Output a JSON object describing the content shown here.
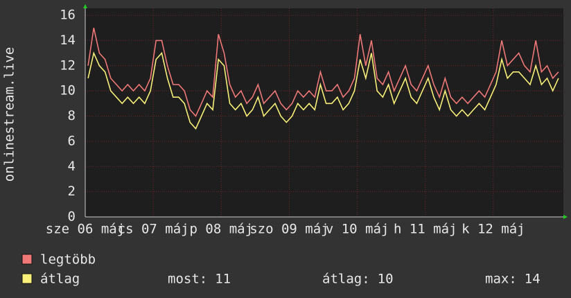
{
  "chart_data": {
    "type": "line",
    "ylabel": "onlinestream.live",
    "xlim": [
      0,
      84
    ],
    "xticks": [
      {
        "value": 0,
        "label": "sze 06 máj"
      },
      {
        "value": 12,
        "label": "cs 07 máj"
      },
      {
        "value": 24,
        "label": "p 08 máj"
      },
      {
        "value": 36,
        "label": "szo 09 máj"
      },
      {
        "value": 48,
        "label": "v 10 máj"
      },
      {
        "value": 60,
        "label": "h 11 máj"
      },
      {
        "value": 72,
        "label": "k 12 máj"
      }
    ],
    "ylim": [
      0,
      16
    ],
    "yticks": [
      0,
      2,
      4,
      6,
      8,
      10,
      12,
      14,
      16
    ],
    "grid": true,
    "series": [
      {
        "name": "legtöbb",
        "color": "#f07878",
        "values": [
          12,
          15,
          13,
          12.5,
          11,
          10.5,
          10,
          10.5,
          10,
          10.5,
          10,
          11,
          14,
          14,
          12,
          10.5,
          10.5,
          10,
          8.5,
          8,
          9,
          10,
          9.5,
          14.5,
          13,
          10.5,
          9.5,
          10,
          9,
          9.5,
          10.5,
          9,
          9.5,
          10,
          9,
          8.5,
          9,
          10,
          9.5,
          10,
          9.5,
          11.5,
          10,
          10,
          10.5,
          9.5,
          10,
          11,
          14.5,
          12,
          14,
          11,
          10.5,
          11.5,
          10,
          11,
          12,
          10.5,
          10,
          11,
          12,
          10.5,
          9.5,
          11,
          9.5,
          9,
          9.5,
          9,
          9.5,
          10,
          9.5,
          10.5,
          11.5,
          14,
          12,
          12.5,
          13,
          12,
          11.5,
          14,
          11.5,
          12,
          11,
          11.5
        ]
      },
      {
        "name": "átlag",
        "color": "#f8f078",
        "values": [
          11,
          13,
          12,
          11.5,
          10,
          9.5,
          9,
          9.5,
          9,
          9.5,
          9,
          10,
          12.5,
          13,
          11,
          9.5,
          9.5,
          9,
          7.5,
          7,
          8,
          9,
          8.5,
          12.5,
          12,
          9,
          8.5,
          9,
          8,
          8.5,
          9.5,
          8,
          8.5,
          9,
          8,
          7.5,
          8,
          9,
          8.5,
          9,
          8.5,
          10.5,
          9,
          9,
          9.5,
          8.5,
          9,
          10,
          12.5,
          11,
          13,
          10,
          9.5,
          10.5,
          9,
          10,
          11,
          9.5,
          9,
          10,
          11,
          9.5,
          8.5,
          10,
          8.5,
          8,
          8.5,
          8,
          8.5,
          9,
          8.5,
          9.5,
          10.5,
          12.5,
          11,
          11.5,
          11.5,
          11,
          10.5,
          12,
          10.5,
          11,
          10,
          11
        ]
      }
    ],
    "stats": [
      {
        "label": "most:",
        "value": 11
      },
      {
        "label": "átlag:",
        "value": 10
      },
      {
        "label": "max:",
        "value": 14
      }
    ]
  }
}
